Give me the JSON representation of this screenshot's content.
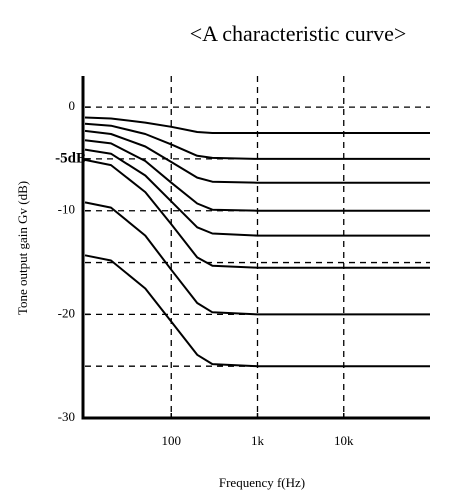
{
  "chart_data": {
    "type": "line",
    "title": "<A characteristic curve>",
    "x_label": "Frequency f(Hz)",
    "y_label": "Tone output gain Gv (dB)",
    "log_x": true,
    "xlim": [
      10,
      100000
    ],
    "ylim": [
      -30,
      3
    ],
    "xticks": [
      100,
      {
        "value": 1000,
        "label": "1k"
      },
      {
        "value": 10000,
        "label": "10k"
      }
    ],
    "yticks": [
      0,
      {
        "value": -5,
        "label": "-5dB"
      },
      -10,
      -20,
      -30
    ],
    "grid_x": [
      100,
      1000,
      10000
    ],
    "grid_y": [
      0,
      -5,
      -10,
      -15,
      -20,
      -25
    ],
    "grid": true,
    "x": [
      10,
      20,
      50,
      100,
      200,
      300,
      1000,
      100000
    ],
    "series": [
      {
        "color": "#000000",
        "values": [
          -1,
          -1.1,
          -1.5,
          -1.9,
          -2.4,
          -2.5,
          -2.5,
          -2.5
        ]
      },
      {
        "color": "#000000",
        "values": [
          -1.6,
          -1.8,
          -2.6,
          -3.6,
          -4.7,
          -4.9,
          -5,
          -5
        ]
      },
      {
        "color": "#000000",
        "values": [
          -2.3,
          -2.6,
          -3.8,
          -5.3,
          -6.8,
          -7.2,
          -7.3,
          -7.3
        ]
      },
      {
        "color": "#000000",
        "values": [
          -3.2,
          -3.5,
          -5.2,
          -7.3,
          -9.3,
          -9.9,
          -10,
          -10
        ]
      },
      {
        "color": "#000000",
        "values": [
          -4.1,
          -4.5,
          -6.6,
          -9.1,
          -11.6,
          -12.2,
          -12.4,
          -12.4
        ]
      },
      {
        "color": "#000000",
        "values": [
          -5.1,
          -5.6,
          -8.2,
          -11.3,
          -14.5,
          -15.3,
          -15.5,
          -15.5
        ]
      },
      {
        "color": "#000000",
        "values": [
          -9.2,
          -9.7,
          -12.4,
          -15.7,
          -18.9,
          -19.8,
          -20,
          -20
        ]
      },
      {
        "color": "#000000",
        "values": [
          -14.3,
          -14.8,
          -17.5,
          -20.7,
          -23.9,
          -24.8,
          -25,
          -25
        ]
      }
    ]
  }
}
